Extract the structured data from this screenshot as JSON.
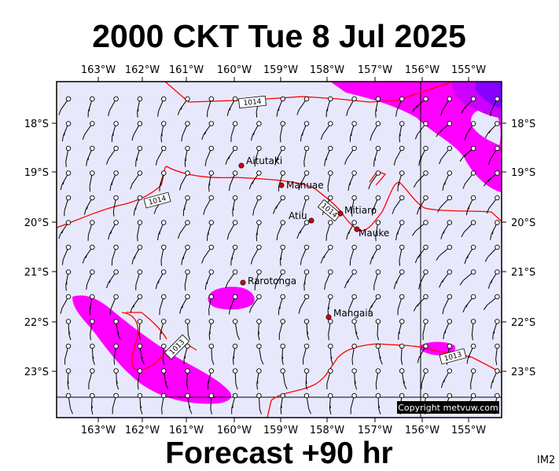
{
  "header": {
    "title": "2000 CKT Tue 8 Jul 2025"
  },
  "footer": {
    "forecast": "Forecast +90 hr",
    "model_code": "IM2",
    "copyright": "Copyright metvuw.com"
  },
  "axes": {
    "lon_ticks": [
      "163°W",
      "162°W",
      "161°W",
      "160°W",
      "159°W",
      "158°W",
      "157°W",
      "156°W",
      "155°W"
    ],
    "lat_ticks": [
      "18°S",
      "19°S",
      "20°S",
      "21°S",
      "22°S",
      "23°S"
    ]
  },
  "places": [
    {
      "name": "Aitutaki"
    },
    {
      "name": "Manuae"
    },
    {
      "name": "Mitiaro"
    },
    {
      "name": "Atiu"
    },
    {
      "name": "Mauke"
    },
    {
      "name": "Rarotonga"
    },
    {
      "name": "Mangaia"
    }
  ],
  "isobars": {
    "labels": [
      "1014",
      "1014",
      "1014",
      "1013",
      "1013"
    ]
  },
  "colors": {
    "background": "#e8e8fc",
    "precip_light": "#ff00ff",
    "precip_heavy": "#8800ff",
    "isobar": "#ff0000",
    "town": "#cc0000",
    "wind": "#000000"
  }
}
